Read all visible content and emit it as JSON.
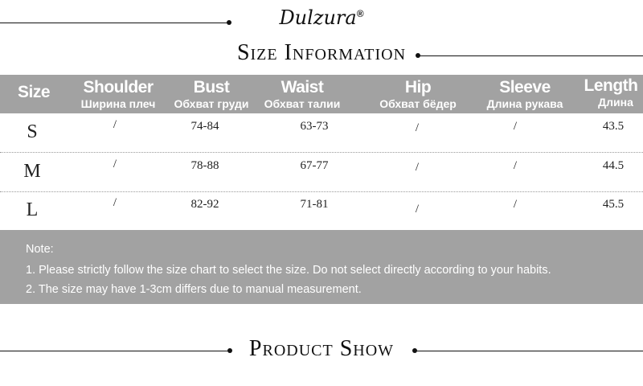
{
  "brand": {
    "logo": "Dulzura",
    "registered": "®"
  },
  "section_title": "Size Information",
  "table": {
    "headers": [
      {
        "en": "Size",
        "ru": ""
      },
      {
        "en": "Shoulder",
        "ru": "Ширина плеч"
      },
      {
        "en": "Bust",
        "ru": "Обхват груди"
      },
      {
        "en": "Waist",
        "ru": "Обхват талии"
      },
      {
        "en": "Hip",
        "ru": "Обхват бёдер"
      },
      {
        "en": "Sleeve",
        "ru": "Длина рукава"
      },
      {
        "en": "Length",
        "ru": "Длина"
      }
    ],
    "rows": [
      [
        "S",
        "/",
        "74-84",
        "63-73",
        "/",
        "/",
        "43.5"
      ],
      [
        "M",
        "/",
        "78-88",
        "67-77",
        "/",
        "/",
        "44.5"
      ],
      [
        "L",
        "/",
        "82-92",
        "71-81",
        "/",
        "/",
        "45.5"
      ]
    ]
  },
  "notes": {
    "label": "Note:",
    "items": [
      "1. Please strictly follow the size chart to select the size. Do not select directly according to your habits.",
      "2. The size may have 1-3cm differs due to manual measurement."
    ]
  },
  "product_show_title": "Product Show",
  "colors": {
    "band": "#a2a2a2",
    "text": "#111111"
  }
}
